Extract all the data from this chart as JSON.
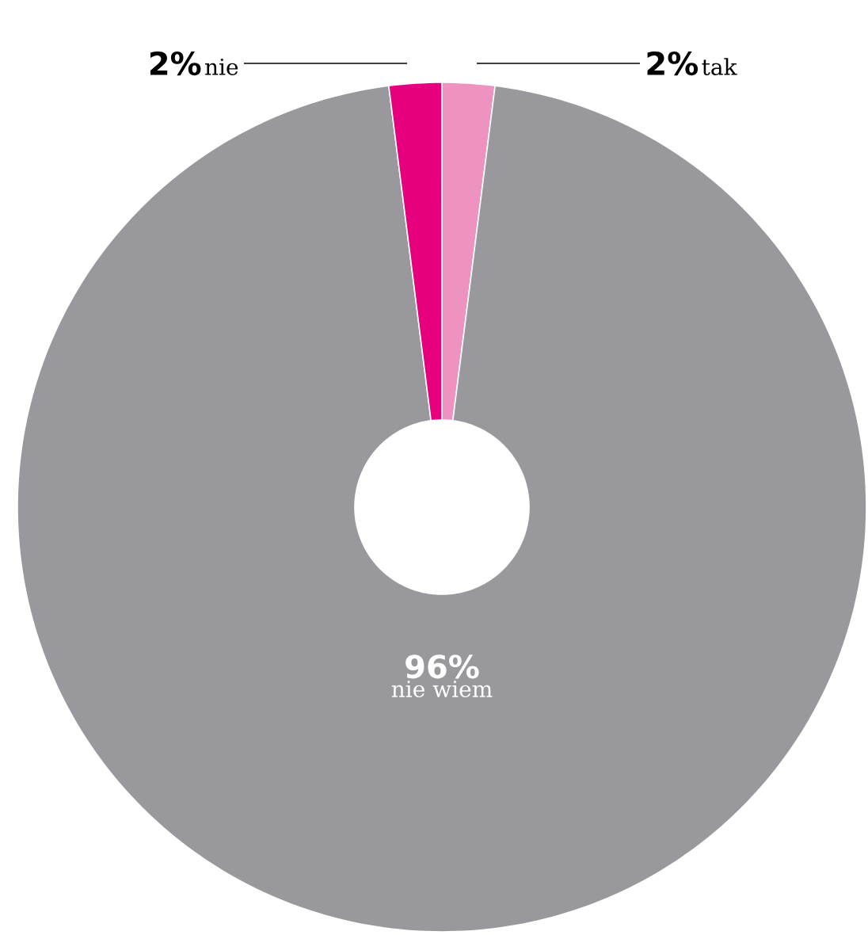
{
  "chart_data": {
    "type": "donut",
    "categories": [
      "tak",
      "nie wiem",
      "nie"
    ],
    "values": [
      2,
      96,
      2
    ],
    "colors": [
      "#ee93bf",
      "#99989d",
      "#e6007e"
    ],
    "value_labels": [
      "2%",
      "96%",
      "2%"
    ]
  }
}
